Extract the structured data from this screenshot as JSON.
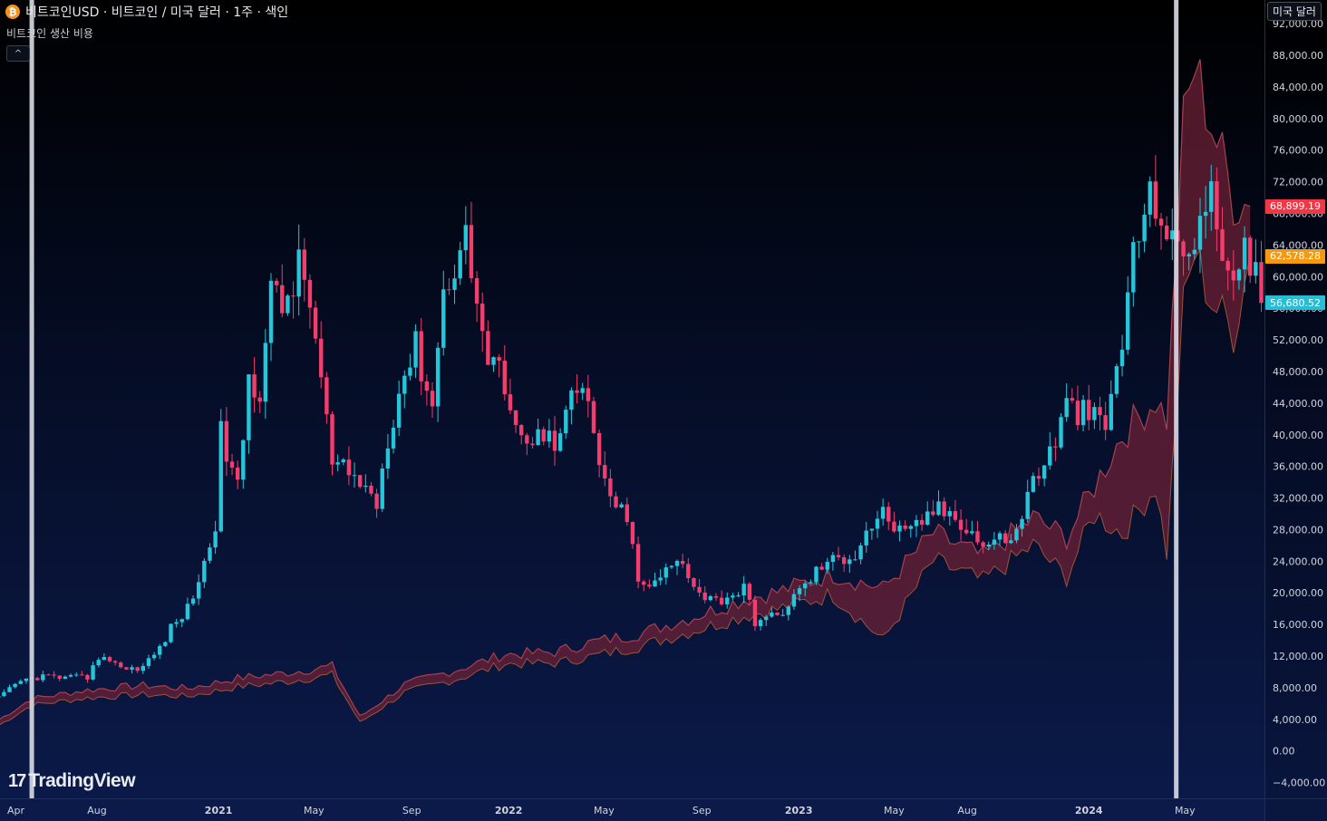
{
  "header": {
    "symbol_title": "비트코인USD · 비트코인 / 미국 달러 · 1주 · 색인",
    "indicator_name": "비트코인 생산 비용",
    "collapse_label": "^",
    "currency_button": "미국 달러",
    "coin_icon": "bitcoin-icon"
  },
  "logo": {
    "mark": "17",
    "text": "TradingView"
  },
  "colors": {
    "up": "#26c6da",
    "down": "#f23d6d",
    "cost_band_fill": "#6b2036",
    "cost_band_line": "#a8404f",
    "cost_band_line_recent": "#b5643a",
    "marker_line": "#d9dce3",
    "tag_red": "#f23645",
    "tag_orange": "#f59a0f",
    "tag_cyan": "#26bdd7"
  },
  "price_tags": [
    {
      "value": 68899.19,
      "label": "68,899.19",
      "color": "#f23645"
    },
    {
      "value": 62578.28,
      "label": "62,578.28",
      "color": "#f59a0f"
    },
    {
      "value": 56680.52,
      "label": "56,680.52",
      "color": "#26bdd7"
    }
  ],
  "chart_data": {
    "type": "candlestick",
    "title": "비트코인USD · 비트코인 / 미국 달러 · 1주 · 색인",
    "ylim": [
      -6000,
      95000
    ],
    "y_ticks": [
      -4000,
      0,
      4000,
      8000,
      12000,
      16000,
      20000,
      24000,
      28000,
      32000,
      36000,
      40000,
      44000,
      48000,
      52000,
      56000,
      60000,
      64000,
      68000,
      72000,
      76000,
      80000,
      84000,
      88000,
      92000
    ],
    "y_tick_labels": [
      "−4,000.00",
      "0.00",
      "4,000.00",
      "8,000.00",
      "12,000.00",
      "16,000.00",
      "20,000.00",
      "24,000.00",
      "28,000.00",
      "32,000.00",
      "36,000.00",
      "40,000.00",
      "44,000.00",
      "48,000.00",
      "52,000.00",
      "56,000.00",
      "60,000.00",
      "64,000.00",
      "68,000.00",
      "72,000.00",
      "76,000.00",
      "80,000.00",
      "84,000.00",
      "88,000.00",
      "92,000.00"
    ],
    "x_start": "2020-04-01",
    "x_end": "2024-08-09",
    "x_ticks": [
      {
        "date": "2020-04-01",
        "label": "Apr"
      },
      {
        "date": "2020-08-01",
        "label": "Aug"
      },
      {
        "date": "2021-01-01",
        "label": "2021"
      },
      {
        "date": "2021-05-01",
        "label": "May"
      },
      {
        "date": "2021-09-01",
        "label": "Sep"
      },
      {
        "date": "2022-01-01",
        "label": "2022"
      },
      {
        "date": "2022-05-01",
        "label": "May"
      },
      {
        "date": "2022-09-01",
        "label": "Sep"
      },
      {
        "date": "2023-01-01",
        "label": "2023"
      },
      {
        "date": "2023-05-01",
        "label": "May"
      },
      {
        "date": "2023-08-01",
        "label": "Aug"
      },
      {
        "date": "2024-01-01",
        "label": "2024"
      },
      {
        "date": "2024-05-01",
        "label": "May"
      }
    ],
    "halving_markers": [
      "2020-05-11",
      "2024-04-20"
    ],
    "price_close": [
      {
        "date": "2020-03-30",
        "close": 6700
      },
      {
        "date": "2020-04-27",
        "close": 8800
      },
      {
        "date": "2020-05-25",
        "close": 9500
      },
      {
        "date": "2020-06-22",
        "close": 9200
      },
      {
        "date": "2020-07-20",
        "close": 9300
      },
      {
        "date": "2020-07-27",
        "close": 11200
      },
      {
        "date": "2020-08-17",
        "close": 11700
      },
      {
        "date": "2020-09-07",
        "close": 10300
      },
      {
        "date": "2020-09-28",
        "close": 10700
      },
      {
        "date": "2020-10-19",
        "close": 13000
      },
      {
        "date": "2020-11-02",
        "close": 15500
      },
      {
        "date": "2020-11-23",
        "close": 18000
      },
      {
        "date": "2020-12-14",
        "close": 23500
      },
      {
        "date": "2020-12-28",
        "close": 29000
      },
      {
        "date": "2021-01-04",
        "close": 40000
      },
      {
        "date": "2021-01-25",
        "close": 33000
      },
      {
        "date": "2021-02-08",
        "close": 47000
      },
      {
        "date": "2021-02-22",
        "close": 46000
      },
      {
        "date": "2021-03-08",
        "close": 58000
      },
      {
        "date": "2021-03-22",
        "close": 56000
      },
      {
        "date": "2021-04-12",
        "close": 61000
      },
      {
        "date": "2021-04-26",
        "close": 57000
      },
      {
        "date": "2021-05-10",
        "close": 47000
      },
      {
        "date": "2021-05-24",
        "close": 36000
      },
      {
        "date": "2021-06-14",
        "close": 35000
      },
      {
        "date": "2021-06-28",
        "close": 34000
      },
      {
        "date": "2021-07-19",
        "close": 31500
      },
      {
        "date": "2021-08-02",
        "close": 40000
      },
      {
        "date": "2021-08-23",
        "close": 48000
      },
      {
        "date": "2021-09-06",
        "close": 51000
      },
      {
        "date": "2021-09-27",
        "close": 44000
      },
      {
        "date": "2021-10-11",
        "close": 58000
      },
      {
        "date": "2021-10-25",
        "close": 62000
      },
      {
        "date": "2021-11-08",
        "close": 65000
      },
      {
        "date": "2021-11-22",
        "close": 57000
      },
      {
        "date": "2021-12-06",
        "close": 49000
      },
      {
        "date": "2021-12-27",
        "close": 47000
      },
      {
        "date": "2022-01-10",
        "close": 42000
      },
      {
        "date": "2022-01-24",
        "close": 38000
      },
      {
        "date": "2022-02-07",
        "close": 42000
      },
      {
        "date": "2022-02-28",
        "close": 38000
      },
      {
        "date": "2022-03-21",
        "close": 44000
      },
      {
        "date": "2022-04-04",
        "close": 46000
      },
      {
        "date": "2022-04-18",
        "close": 40000
      },
      {
        "date": "2022-05-09",
        "close": 31000
      },
      {
        "date": "2022-05-30",
        "close": 30000
      },
      {
        "date": "2022-06-13",
        "close": 21000
      },
      {
        "date": "2022-07-04",
        "close": 21000
      },
      {
        "date": "2022-07-25",
        "close": 23500
      },
      {
        "date": "2022-08-08",
        "close": 24000
      },
      {
        "date": "2022-08-29",
        "close": 20000
      },
      {
        "date": "2022-09-19",
        "close": 19000
      },
      {
        "date": "2022-10-24",
        "close": 20500
      },
      {
        "date": "2022-11-07",
        "close": 16500
      },
      {
        "date": "2022-12-05",
        "close": 17000
      },
      {
        "date": "2023-01-09",
        "close": 21000
      },
      {
        "date": "2023-01-30",
        "close": 23500
      },
      {
        "date": "2023-03-13",
        "close": 25000
      },
      {
        "date": "2023-03-27",
        "close": 28000
      },
      {
        "date": "2023-04-17",
        "close": 30000
      },
      {
        "date": "2023-05-15",
        "close": 27000
      },
      {
        "date": "2023-06-19",
        "close": 30500
      },
      {
        "date": "2023-07-17",
        "close": 30000
      },
      {
        "date": "2023-08-21",
        "close": 26000
      },
      {
        "date": "2023-10-02",
        "close": 27500
      },
      {
        "date": "2023-10-23",
        "close": 34500
      },
      {
        "date": "2023-11-13",
        "close": 37500
      },
      {
        "date": "2023-12-04",
        "close": 43500
      },
      {
        "date": "2024-01-08",
        "close": 42000
      },
      {
        "date": "2024-01-22",
        "close": 41000
      },
      {
        "date": "2024-02-12",
        "close": 52000
      },
      {
        "date": "2024-02-26",
        "close": 62500
      },
      {
        "date": "2024-03-11",
        "close": 68500
      },
      {
        "date": "2024-03-25",
        "close": 70000
      },
      {
        "date": "2024-04-15",
        "close": 63500
      },
      {
        "date": "2024-04-29",
        "close": 63000
      },
      {
        "date": "2024-05-20",
        "close": 67000
      },
      {
        "date": "2024-06-03",
        "close": 69500
      },
      {
        "date": "2024-06-17",
        "close": 64500
      },
      {
        "date": "2024-07-01",
        "close": 57000
      },
      {
        "date": "2024-07-15",
        "close": 66000
      },
      {
        "date": "2024-08-05",
        "close": 56680
      }
    ],
    "production_cost_band": [
      {
        "date": "2020-03-30",
        "low": 3200,
        "high": 3900
      },
      {
        "date": "2020-05-11",
        "low": 5800,
        "high": 6600
      },
      {
        "date": "2020-07-20",
        "low": 6700,
        "high": 7700
      },
      {
        "date": "2020-09-28",
        "low": 7100,
        "high": 8300
      },
      {
        "date": "2020-11-23",
        "low": 6900,
        "high": 7900
      },
      {
        "date": "2021-01-25",
        "low": 8100,
        "high": 9200
      },
      {
        "date": "2021-03-22",
        "low": 8700,
        "high": 9800
      },
      {
        "date": "2021-05-24",
        "low": 9600,
        "high": 10700
      },
      {
        "date": "2021-06-28",
        "low": 3600,
        "high": 4300
      },
      {
        "date": "2021-08-23",
        "low": 7400,
        "high": 8400
      },
      {
        "date": "2021-10-25",
        "low": 9000,
        "high": 10200
      },
      {
        "date": "2021-12-27",
        "low": 11000,
        "high": 12200
      },
      {
        "date": "2022-02-28",
        "low": 11100,
        "high": 12500
      },
      {
        "date": "2022-04-18",
        "low": 12000,
        "high": 13800
      },
      {
        "date": "2022-06-13",
        "low": 13200,
        "high": 14800
      },
      {
        "date": "2022-08-29",
        "low": 15400,
        "high": 17200
      },
      {
        "date": "2022-10-24",
        "low": 17100,
        "high": 19200
      },
      {
        "date": "2022-12-05",
        "low": 17900,
        "high": 20100
      },
      {
        "date": "2023-02-13",
        "low": 19800,
        "high": 22400
      },
      {
        "date": "2023-04-17",
        "low": 14000,
        "high": 20500
      },
      {
        "date": "2023-06-19",
        "low": 24000,
        "high": 27500
      },
      {
        "date": "2023-08-21",
        "low": 21500,
        "high": 24500
      },
      {
        "date": "2023-10-23",
        "low": 26000,
        "high": 29500
      },
      {
        "date": "2023-12-04",
        "low": 22000,
        "high": 27000
      },
      {
        "date": "2024-01-08",
        "low": 30000,
        "high": 33500
      },
      {
        "date": "2024-02-12",
        "low": 27500,
        "high": 40000
      },
      {
        "date": "2024-03-25",
        "low": 33500,
        "high": 44500
      },
      {
        "date": "2024-04-08",
        "low": 25000,
        "high": 42000
      },
      {
        "date": "2024-04-29",
        "low": 56000,
        "high": 79000
      },
      {
        "date": "2024-05-13",
        "low": 63000,
        "high": 86500
      },
      {
        "date": "2024-06-03",
        "low": 57000,
        "high": 79500
      },
      {
        "date": "2024-07-01",
        "low": 53000,
        "high": 70000
      },
      {
        "date": "2024-07-22",
        "low": 62500,
        "high": 68900
      }
    ]
  }
}
